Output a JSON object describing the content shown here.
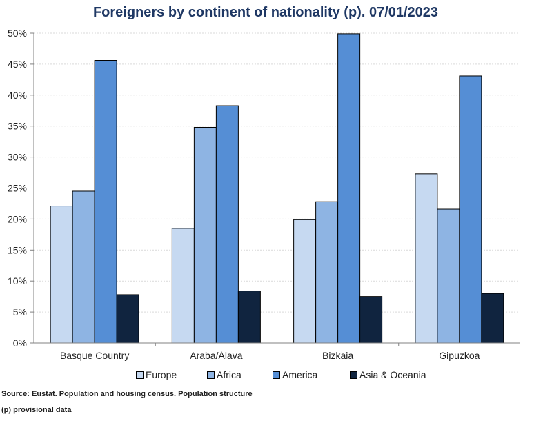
{
  "chart_data": {
    "type": "bar",
    "title": "Foreigners by continent of nationality (p). 07/01/2023",
    "categories": [
      "Basque Country",
      "Araba/Álava",
      "Bizkaia",
      "Gipuzkoa"
    ],
    "series": [
      {
        "name": "Europe",
        "color": "#c6d9f1",
        "values": [
          22.1,
          18.5,
          19.9,
          27.3
        ]
      },
      {
        "name": "Africa",
        "color": "#8eb4e3",
        "values": [
          24.5,
          34.8,
          22.8,
          21.6
        ]
      },
      {
        "name": "America",
        "color": "#558ed5",
        "values": [
          45.6,
          38.3,
          49.9,
          43.1
        ]
      },
      {
        "name": "Asia & Oceania",
        "color": "#10243f",
        "values": [
          7.8,
          8.4,
          7.5,
          8.0
        ]
      }
    ],
    "ylim": [
      0,
      50
    ],
    "yticks": [
      "0%",
      "5%",
      "10%",
      "15%",
      "20%",
      "25%",
      "30%",
      "35%",
      "40%",
      "45%",
      "50%"
    ],
    "grid": true,
    "legend_position": "bottom"
  },
  "footnotes": {
    "source": "Source: Eustat. Population and housing census. Population structure",
    "provisional": "(p) provisional data"
  }
}
